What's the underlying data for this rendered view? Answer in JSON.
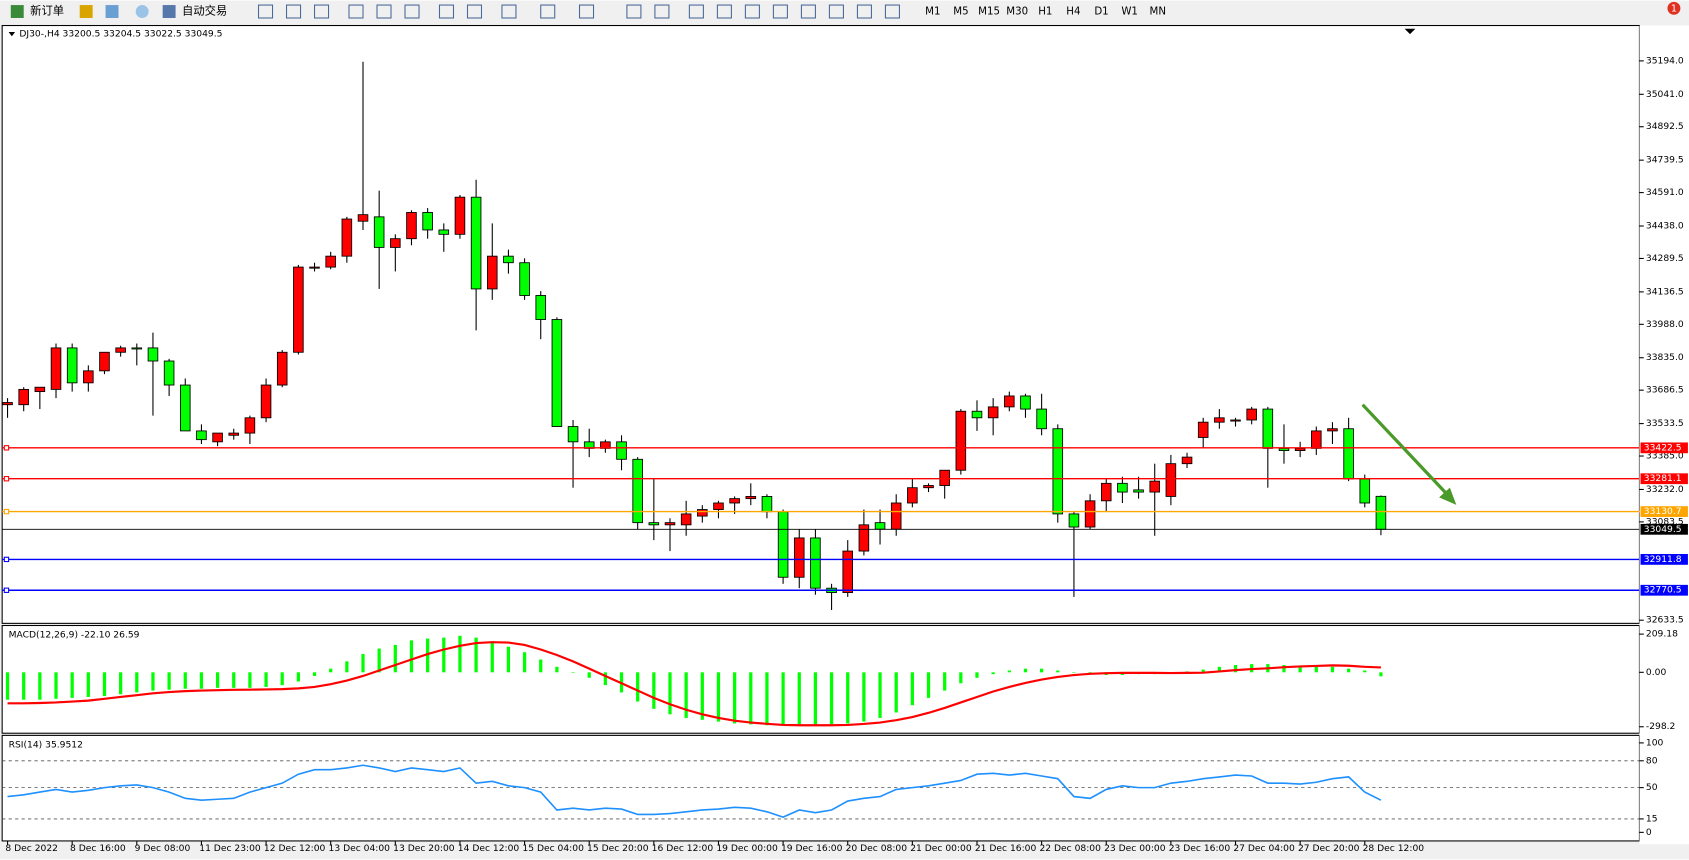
{
  "toolbar": {
    "new_order": "新订单",
    "auto_trading": "自动交易",
    "timeframes": [
      "M1",
      "M5",
      "M15",
      "M30",
      "H1",
      "H4",
      "D1",
      "W1",
      "MN"
    ],
    "notifications": 1
  },
  "chart_data": [
    {
      "type": "candlestick",
      "title": "DJ30-,H4 33200.5 33204.5 33022.5 33049.5",
      "up_color": "#ff0000",
      "down_color": "#00ff00",
      "categories": [
        "8 Dec 2022",
        null,
        null,
        null,
        "8 Dec 16:00",
        null,
        null,
        null,
        "9 Dec 08:00",
        null,
        null,
        null,
        "11 Dec 23:00",
        null,
        null,
        null,
        "12 Dec 12:00",
        null,
        null,
        null,
        "13 Dec 04:00",
        null,
        null,
        null,
        "13 Dec 20:00",
        null,
        null,
        null,
        "14 Dec 12:00",
        null,
        null,
        null,
        "15 Dec 04:00",
        null,
        null,
        null,
        "15 Dec 20:00",
        null,
        null,
        null,
        "16 Dec 12:00",
        null,
        null,
        null,
        "19 Dec 00:00",
        null,
        null,
        null,
        "19 Dec 16:00",
        null,
        null,
        null,
        "20 Dec 08:00",
        null,
        null,
        null,
        "21 Dec 00:00",
        null,
        null,
        null,
        "21 Dec 16:00",
        null,
        null,
        null,
        "22 Dec 08:00",
        null,
        null,
        null,
        "23 Dec 00:00",
        null,
        null,
        null,
        "23 Dec 16:00",
        null,
        null,
        null,
        "27 Dec 04:00",
        null,
        null,
        null,
        "27 Dec 20:00",
        null,
        null,
        null,
        "28 Dec 12:00",
        null
      ],
      "ohlc": [
        [
          33620,
          33650,
          33560,
          33630
        ],
        [
          33620,
          33700,
          33590,
          33690
        ],
        [
          33680,
          33700,
          33600,
          33700
        ],
        [
          33690,
          33900,
          33650,
          33880
        ],
        [
          33880,
          33900,
          33680,
          33720
        ],
        [
          33720,
          33800,
          33680,
          33775
        ],
        [
          33775,
          33860,
          33760,
          33860
        ],
        [
          33860,
          33890,
          33840,
          33880
        ],
        [
          33880,
          33900,
          33800,
          33875
        ],
        [
          33880,
          33950,
          33570,
          33820
        ],
        [
          33820,
          33830,
          33660,
          33710
        ],
        [
          33710,
          33740,
          33500,
          33500
        ],
        [
          33500,
          33530,
          33440,
          33460
        ],
        [
          33450,
          33490,
          33430,
          33490
        ],
        [
          33480,
          33510,
          33460,
          33490
        ],
        [
          33490,
          33570,
          33440,
          33560
        ],
        [
          33560,
          33740,
          33540,
          33710
        ],
        [
          33710,
          33870,
          33700,
          33860
        ],
        [
          33860,
          34260,
          33850,
          34250
        ],
        [
          34250,
          34270,
          34230,
          34250
        ],
        [
          34250,
          34320,
          34240,
          34300
        ],
        [
          34300,
          34480,
          34270,
          34470
        ],
        [
          34460,
          35190,
          34420,
          34490
        ],
        [
          34480,
          34600,
          34150,
          34340
        ],
        [
          34340,
          34400,
          34230,
          34380
        ],
        [
          34380,
          34510,
          34350,
          34500
        ],
        [
          34500,
          34520,
          34380,
          34420
        ],
        [
          34420,
          34450,
          34320,
          34400
        ],
        [
          34400,
          34580,
          34380,
          34570
        ],
        [
          34570,
          34650,
          33960,
          34150
        ],
        [
          34150,
          34450,
          34100,
          34300
        ],
        [
          34300,
          34330,
          34220,
          34270
        ],
        [
          34270,
          34290,
          34100,
          34120
        ],
        [
          34120,
          34140,
          33920,
          34010
        ],
        [
          34010,
          34020,
          33520,
          33520
        ],
        [
          33520,
          33550,
          33240,
          33450
        ],
        [
          33450,
          33510,
          33380,
          33420
        ],
        [
          33420,
          33460,
          33400,
          33450
        ],
        [
          33450,
          33480,
          33320,
          33370
        ],
        [
          33370,
          33380,
          33050,
          33080
        ],
        [
          33080,
          33280,
          33000,
          33070
        ],
        [
          33070,
          33100,
          32950,
          33080
        ],
        [
          33070,
          33180,
          33020,
          33120
        ],
        [
          33110,
          33160,
          33080,
          33140
        ],
        [
          33140,
          33180,
          33100,
          33170
        ],
        [
          33170,
          33200,
          33120,
          33190
        ],
        [
          33190,
          33260,
          33160,
          33200
        ],
        [
          33200,
          33210,
          33100,
          33130
        ],
        [
          33130,
          33140,
          32800,
          32830
        ],
        [
          32830,
          33050,
          32780,
          33010
        ],
        [
          33010,
          33050,
          32750,
          32780
        ],
        [
          32780,
          32800,
          32680,
          32760
        ],
        [
          32760,
          33000,
          32740,
          32950
        ],
        [
          32950,
          33140,
          32930,
          33070
        ],
        [
          33080,
          33140,
          32980,
          33050
        ],
        [
          33050,
          33210,
          33020,
          33170
        ],
        [
          33170,
          33280,
          33150,
          33240
        ],
        [
          33240,
          33260,
          33220,
          33250
        ],
        [
          33250,
          33320,
          33190,
          33320
        ],
        [
          33320,
          33600,
          33300,
          33590
        ],
        [
          33590,
          33640,
          33500,
          33560
        ],
        [
          33560,
          33650,
          33480,
          33610
        ],
        [
          33610,
          33680,
          33590,
          33660
        ],
        [
          33660,
          33670,
          33560,
          33600
        ],
        [
          33600,
          33670,
          33480,
          33510
        ],
        [
          33510,
          33530,
          33080,
          33120
        ],
        [
          33120,
          33130,
          32740,
          33060
        ],
        [
          33060,
          33210,
          33050,
          33180
        ],
        [
          33180,
          33280,
          33130,
          33260
        ],
        [
          33260,
          33290,
          33170,
          33220
        ],
        [
          33230,
          33290,
          33190,
          33220
        ],
        [
          33220,
          33350,
          33020,
          33270
        ],
        [
          33200,
          33390,
          33160,
          33350
        ],
        [
          33350,
          33400,
          33330,
          33380
        ],
        [
          33470,
          33560,
          33420,
          33540
        ],
        [
          33540,
          33600,
          33510,
          33560
        ],
        [
          33550,
          33560,
          33520,
          33550
        ],
        [
          33550,
          33610,
          33530,
          33600
        ],
        [
          33600,
          33610,
          33240,
          33420
        ],
        [
          33420,
          33530,
          33350,
          33410
        ],
        [
          33410,
          33450,
          33380,
          33420
        ],
        [
          33420,
          33520,
          33390,
          33500
        ],
        [
          33500,
          33540,
          33440,
          33510
        ],
        [
          33510,
          33560,
          33270,
          33280
        ],
        [
          33280,
          33300,
          33150,
          33170
        ],
        [
          33200.5,
          33204.5,
          33022.5,
          33049.5
        ]
      ],
      "ylim": [
        32619,
        35346
      ],
      "yticks": [
        {
          "value": 35194,
          "label": "35194.0"
        },
        {
          "value": 35041,
          "label": "35041.0"
        },
        34892.5,
        34739.5,
        {
          "value": 34591,
          "label": "34591.0"
        },
        {
          "value": 34438,
          "label": "34438.0"
        },
        34289.5,
        34136.5,
        {
          "value": 33988,
          "label": "33988.0"
        },
        {
          "value": 33835,
          "label": "33835.0"
        },
        33686.5,
        33533.5,
        {
          "value": 33385,
          "label": "33385.0"
        },
        {
          "value": 33232,
          "label": "33232.0"
        },
        33083.5,
        32633.5
      ],
      "levels": [
        {
          "value": 33422.5,
          "color": "#ff0000"
        },
        {
          "value": 33281.1,
          "color": "#ff0000"
        },
        {
          "value": 33130.7,
          "color": "#ffa500"
        },
        {
          "value": 32911.8,
          "color": "#0000ff"
        },
        {
          "value": 32770.5,
          "color": "#0000ff"
        }
      ],
      "current_price": 33049.5
    },
    {
      "type": "macd",
      "title": "MACD(12,26,9) -22.10 26.59",
      "series": [
        {
          "color": "#00ff00",
          "values": [
            -150,
            -150,
            -150,
            -145,
            -140,
            -135,
            -130,
            -120,
            -110,
            -100,
            -95,
            -90,
            -90,
            -85,
            -85,
            -85,
            -80,
            -70,
            -50,
            -20,
            20,
            60,
            100,
            130,
            150,
            175,
            185,
            190,
            200,
            190,
            170,
            140,
            110,
            70,
            30,
            0,
            -30,
            -70,
            -110,
            -160,
            -200,
            -230,
            -250,
            -260,
            -270,
            -280,
            -285,
            -290,
            -290,
            -290,
            -290,
            -285,
            -280,
            -270,
            -250,
            -220,
            -180,
            -140,
            -100,
            -60,
            -30,
            -10,
            10,
            20,
            20,
            10,
            0,
            -10,
            -15,
            -15,
            -10,
            -10,
            -5,
            5,
            15,
            30,
            40,
            45,
            45,
            40,
            35,
            35,
            30,
            20,
            10,
            -22.1
          ]
        },
        {
          "color": "#ff0000",
          "values": [
            -170,
            -170,
            -168,
            -165,
            -160,
            -155,
            -145,
            -135,
            -125,
            -115,
            -108,
            -103,
            -100,
            -98,
            -96,
            -95,
            -94,
            -92,
            -88,
            -80,
            -65,
            -45,
            -20,
            10,
            40,
            70,
            100,
            125,
            145,
            160,
            165,
            163,
            150,
            125,
            95,
            60,
            20,
            -20,
            -60,
            -100,
            -140,
            -175,
            -205,
            -230,
            -250,
            -265,
            -275,
            -282,
            -288,
            -290,
            -290,
            -290,
            -288,
            -283,
            -275,
            -262,
            -245,
            -222,
            -195,
            -165,
            -135,
            -105,
            -80,
            -58,
            -40,
            -25,
            -15,
            -8,
            -5,
            -3,
            -3,
            -3,
            -4,
            -3,
            -2,
            5,
            12,
            18,
            22,
            28,
            32,
            35,
            38,
            36,
            30,
            26.59
          ]
        }
      ],
      "ylim": [
        -333.6,
        244.6
      ],
      "yticks": [
        209.18,
        {
          "value": 0,
          "label": "0.00"
        },
        -298.2
      ]
    },
    {
      "type": "rsi",
      "title": "RSI(14) 35.9512",
      "color": "#1e90ff",
      "values": [
        40,
        42,
        45,
        48,
        45,
        47,
        50,
        52,
        53,
        50,
        45,
        38,
        36,
        37,
        38,
        45,
        50,
        55,
        65,
        70,
        70,
        72,
        75,
        72,
        68,
        72,
        70,
        68,
        72,
        55,
        57,
        52,
        50,
        45,
        25,
        27,
        25,
        27,
        26,
        20,
        20,
        21,
        23,
        25,
        26,
        28,
        27,
        23,
        17,
        25,
        22,
        25,
        35,
        38,
        40,
        48,
        50,
        52,
        55,
        58,
        65,
        66,
        64,
        66,
        63,
        60,
        40,
        38,
        48,
        52,
        50,
        50,
        55,
        57,
        60,
        62,
        64,
        63,
        55,
        55,
        54,
        56,
        60,
        62,
        45,
        35.9512
      ],
      "ylim": [
        -9.6,
        106
      ],
      "yticks": [
        100,
        80,
        50,
        15,
        0
      ],
      "levels": [
        80,
        50,
        15
      ]
    }
  ]
}
